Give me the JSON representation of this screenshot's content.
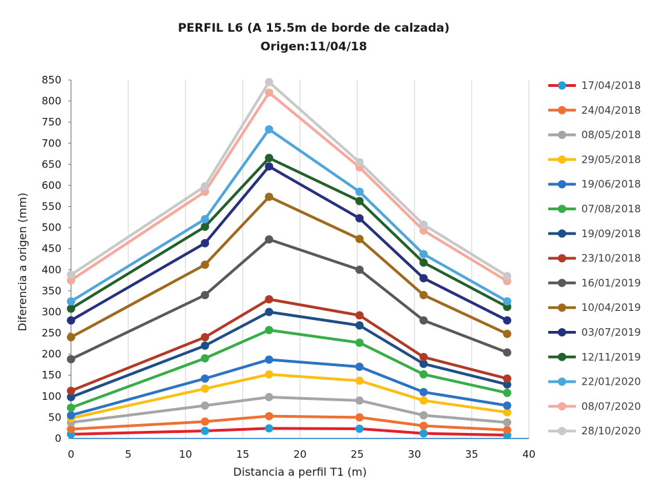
{
  "chart_data": {
    "type": "line",
    "title": "PERFIL L6 (A 15.5m de borde de calzada)",
    "subtitle": "Origen:11/04/18",
    "xlabel": "Distancia a perfil T1 (m)",
    "ylabel": "Diferencia a origen (mm)",
    "xlim": [
      0,
      40
    ],
    "ylim": [
      0,
      850
    ],
    "x_ticks": [
      "0",
      "5",
      "10",
      "15",
      "20",
      "25",
      "30",
      "35",
      "40"
    ],
    "y_ticks": [
      "0",
      "50",
      "100",
      "150",
      "200",
      "250",
      "300",
      "350",
      "400",
      "450",
      "500",
      "550",
      "600",
      "650",
      "700",
      "750",
      "800",
      "850"
    ],
    "grid": "vertical",
    "legend_position": "right",
    "x": [
      0,
      11.7,
      17.3,
      25.2,
      30.8,
      38.1
    ],
    "series": [
      {
        "name": "17/04/2018",
        "color": "#e3202a",
        "marker": "#1fa0d8",
        "values": [
          10,
          18,
          24,
          23,
          12,
          8
        ]
      },
      {
        "name": "24/04/2018",
        "color": "#ee7133",
        "marker": "#ee7133",
        "values": [
          22,
          40,
          53,
          50,
          30,
          20
        ]
      },
      {
        "name": "08/05/2018",
        "color": "#a5a5a5",
        "marker": "#a5a5a5",
        "values": [
          38,
          78,
          98,
          90,
          55,
          38
        ]
      },
      {
        "name": "29/05/2018",
        "color": "#fdbe14",
        "marker": "#fdbe14",
        "values": [
          48,
          118,
          152,
          137,
          90,
          62
        ]
      },
      {
        "name": "19/06/2018",
        "color": "#2d73c4",
        "marker": "#2d73c4",
        "values": [
          55,
          142,
          187,
          170,
          110,
          78
        ]
      },
      {
        "name": "07/08/2018",
        "color": "#37ad48",
        "marker": "#37ad48",
        "values": [
          73,
          190,
          257,
          227,
          152,
          108
        ]
      },
      {
        "name": "19/09/2018",
        "color": "#1d4f86",
        "marker": "#1d4f86",
        "values": [
          98,
          220,
          300,
          268,
          177,
          128
        ]
      },
      {
        "name": "23/10/2018",
        "color": "#b13a26",
        "marker": "#b13a26",
        "values": [
          113,
          240,
          330,
          292,
          193,
          142
        ]
      },
      {
        "name": "16/01/2019",
        "color": "#595959",
        "marker": "#595959",
        "values": [
          188,
          340,
          472,
          400,
          280,
          204
        ]
      },
      {
        "name": "10/04/2019",
        "color": "#9e6b1e",
        "marker": "#9e6b1e",
        "values": [
          240,
          412,
          573,
          473,
          340,
          248
        ]
      },
      {
        "name": "03/07/2019",
        "color": "#26307e",
        "marker": "#26307e",
        "values": [
          280,
          463,
          645,
          522,
          380,
          280
        ]
      },
      {
        "name": "12/11/2019",
        "color": "#22612b",
        "marker": "#22612b",
        "values": [
          308,
          502,
          665,
          563,
          417,
          312
        ]
      },
      {
        "name": "22/01/2020",
        "color": "#4ea6dc",
        "marker": "#4ea6dc",
        "values": [
          325,
          520,
          733,
          585,
          437,
          325
        ]
      },
      {
        "name": "08/07/2020",
        "color": "#f5aa9c",
        "marker": "#f5aa9c",
        "values": [
          375,
          585,
          820,
          643,
          493,
          373
        ]
      },
      {
        "name": "28/10/2020",
        "color": "#c9c9c9",
        "marker": "#c9c9c9",
        "values": [
          388,
          598,
          845,
          655,
          507,
          385
        ]
      }
    ]
  }
}
